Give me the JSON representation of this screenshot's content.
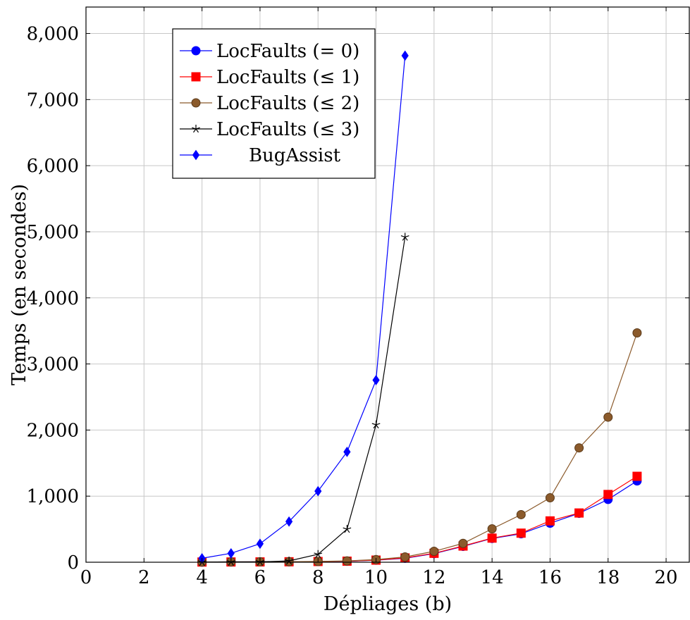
{
  "chart_data": {
    "type": "line",
    "title": "",
    "xlabel": "Dépliages (b)",
    "ylabel": "Temps (en secondes)",
    "xlim": [
      0,
      20.8
    ],
    "ylim": [
      0,
      8400
    ],
    "xticks": [
      0,
      2,
      4,
      6,
      8,
      10,
      12,
      14,
      16,
      18,
      20
    ],
    "xtick_labels": [
      "0",
      "2",
      "4",
      "6",
      "8",
      "10",
      "12",
      "14",
      "16",
      "18",
      "20"
    ],
    "yticks": [
      0,
      1000,
      2000,
      3000,
      4000,
      5000,
      6000,
      7000,
      8000
    ],
    "ytick_labels": [
      "0",
      "1,000",
      "2,000",
      "3,000",
      "4,000",
      "5,000",
      "6,000",
      "7,000",
      "8,000"
    ],
    "grid": true,
    "legend_position": "top-left",
    "series": [
      {
        "name": "LocFaults (= 0)",
        "color": "#0000ff",
        "marker": "circle",
        "x": [
          4,
          5,
          6,
          7,
          8,
          9,
          10,
          11,
          12,
          13,
          14,
          15,
          16,
          17,
          18,
          19
        ],
        "y": [
          3,
          4,
          5,
          7,
          10,
          15,
          30,
          60,
          130,
          240,
          360,
          430,
          590,
          740,
          950,
          1230
        ]
      },
      {
        "name": "LocFaults (≤ 1)",
        "color": "#ff0000",
        "marker": "square",
        "x": [
          4,
          5,
          6,
          7,
          8,
          9,
          10,
          11,
          12,
          13,
          14,
          15,
          16,
          17,
          18,
          19
        ],
        "y": [
          3,
          4,
          5,
          7,
          11,
          16,
          32,
          65,
          135,
          245,
          365,
          440,
          625,
          745,
          1025,
          1300
        ]
      },
      {
        "name": "LocFaults (≤ 2)",
        "color": "#8b5a2b",
        "marker": "circle",
        "x": [
          4,
          5,
          6,
          7,
          8,
          9,
          10,
          11,
          12,
          13,
          14,
          15,
          16,
          17,
          18,
          19
        ],
        "y": [
          3,
          5,
          6,
          8,
          12,
          20,
          40,
          80,
          165,
          285,
          505,
          720,
          975,
          1730,
          2195,
          3470
        ]
      },
      {
        "name": "LocFaults (≤ 3)",
        "color": "#000000",
        "marker": "star",
        "x": [
          4,
          5,
          6,
          7,
          8,
          9,
          10,
          11
        ],
        "y": [
          3,
          5,
          6,
          20,
          120,
          500,
          2080,
          4920
        ]
      },
      {
        "name": "BugAssist",
        "color": "#0000ff",
        "marker": "diamond",
        "x": [
          4,
          5,
          6,
          7,
          8,
          9,
          10,
          11
        ],
        "y": [
          60,
          135,
          280,
          615,
          1075,
          1670,
          2755,
          7665
        ]
      }
    ]
  }
}
